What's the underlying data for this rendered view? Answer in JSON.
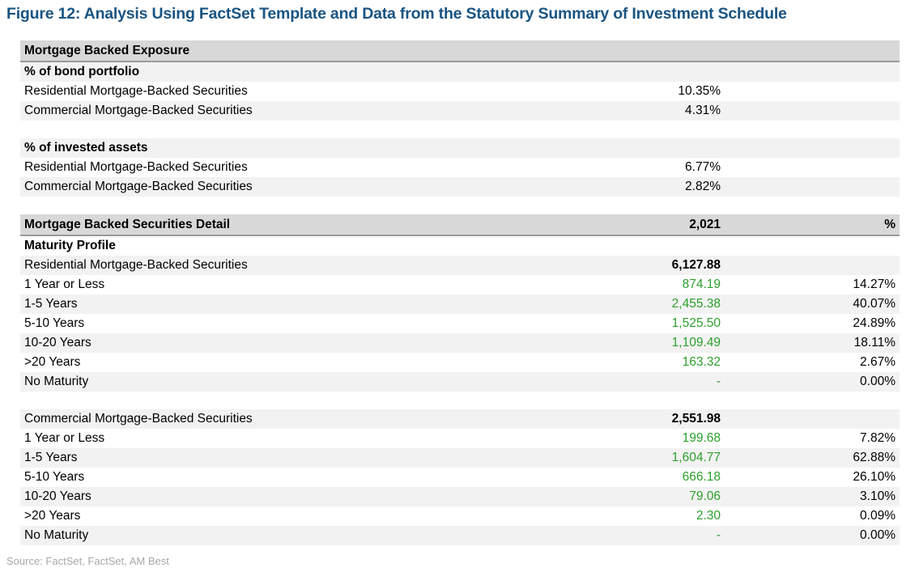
{
  "figure": {
    "title": "Figure 12: Analysis Using FactSet Template and Data from the Statutory Summary of Investment Schedule",
    "source": "Source: FactSet, FactSet, AM Best"
  },
  "colors": {
    "title_blue": "#1a5482",
    "header_bg": "#d8d8d8",
    "alt_row_bg": "#f2f2f2",
    "value_green": "#2ca02c",
    "source_gray": "#a8a8a8",
    "header_border": "#9a9a9a"
  },
  "exposure": {
    "header": "Mortgage Backed Exposure",
    "bond_portfolio": {
      "label": "% of bond portfolio",
      "rows": [
        {
          "label": "Residential Mortgage-Backed Securities",
          "value": "10.35%"
        },
        {
          "label": "Commercial Mortgage-Backed Securities",
          "value": "4.31%"
        }
      ]
    },
    "invested_assets": {
      "label": "% of invested assets",
      "rows": [
        {
          "label": "Residential Mortgage-Backed Securities",
          "value": "6.77%"
        },
        {
          "label": "Commercial Mortgage-Backed Securities",
          "value": "2.82%"
        }
      ]
    }
  },
  "detail": {
    "header": {
      "label": "Mortgage Backed Securities Detail",
      "value": "2,021",
      "pct": "%"
    },
    "subheader": "Maturity Profile",
    "residential": {
      "label": "Residential Mortgage-Backed Securities",
      "total": "6,127.88",
      "rows": [
        {
          "label": "1 Year or Less",
          "value": "874.19",
          "pct": "14.27%"
        },
        {
          "label": "1-5 Years",
          "value": "2,455.38",
          "pct": "40.07%"
        },
        {
          "label": "5-10 Years",
          "value": "1,525.50",
          "pct": "24.89%"
        },
        {
          "label": "10-20 Years",
          "value": "1,109.49",
          "pct": "18.11%"
        },
        {
          "label": ">20 Years",
          "value": "163.32",
          "pct": "2.67%"
        },
        {
          "label": "No Maturity",
          "value": "-",
          "pct": "0.00%"
        }
      ]
    },
    "commercial": {
      "label": "Commercial Mortgage-Backed Securities",
      "total": "2,551.98",
      "rows": [
        {
          "label": "1 Year or Less",
          "value": "199.68",
          "pct": "7.82%"
        },
        {
          "label": "1-5 Years",
          "value": "1,604.77",
          "pct": "62.88%"
        },
        {
          "label": "5-10 Years",
          "value": "666.18",
          "pct": "26.10%"
        },
        {
          "label": "10-20 Years",
          "value": "79.06",
          "pct": "3.10%"
        },
        {
          "label": ">20 Years",
          "value": "2.30",
          "pct": "0.09%"
        },
        {
          "label": "No Maturity",
          "value": "-",
          "pct": "0.00%"
        }
      ]
    }
  }
}
